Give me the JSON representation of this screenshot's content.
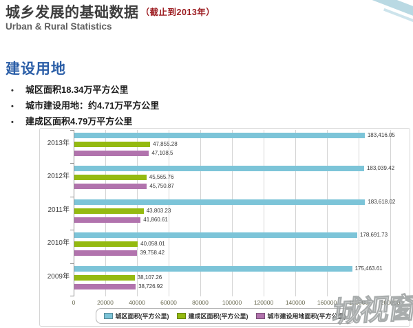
{
  "header": {
    "title": "城乡发展的基础数据",
    "title_suffix": "（截止到2013年）",
    "subtitle": "Urban & Rural Statistics"
  },
  "section": {
    "heading": "建设用地",
    "bullets": [
      "城区面积18.34万平方公里",
      "城市建设用地：约4.71万平方公里",
      "建成区面积4.79万平方公里"
    ],
    "bullet_char": "•"
  },
  "watermark": {
    "text": "城视窗"
  },
  "colors": {
    "heading_blue": "#2b5ea7",
    "title_red": "#9c1b20",
    "series_blue": "#7cc4d8",
    "series_green": "#94ba10",
    "series_purple": "#b173ad"
  },
  "chart_data": {
    "type": "bar",
    "orientation": "horizontal",
    "title": "",
    "xlabel": "",
    "ylabel": "",
    "categories": [
      "2013年",
      "2012年",
      "2011年",
      "2010年",
      "2009年"
    ],
    "series": [
      {
        "name": "城区面积(平方公里)",
        "color": "#7cc4d8",
        "values": [
          183416.05,
          183039.42,
          183618.02,
          178691.73,
          175463.61
        ],
        "labels": [
          "183,416.05",
          "183,039.42",
          "183,618.02",
          "178,691.73",
          "175,463.61"
        ]
      },
      {
        "name": "建成区面积(平方公里)",
        "color": "#94ba10",
        "values": [
          47855.28,
          45565.76,
          43803.23,
          40058.01,
          38107.26
        ],
        "labels": [
          "47,855.28",
          "45,565.76",
          "43,803.23",
          "40,058.01",
          "38,107.26"
        ]
      },
      {
        "name": "城市建设用地面积(平方公里)",
        "color": "#b173ad",
        "values": [
          47108.5,
          45750.87,
          41860.61,
          39758.42,
          38726.92
        ],
        "labels": [
          "47,108.5",
          "45,750.87",
          "41,860.61",
          "39,758.42",
          "38,726.92"
        ]
      }
    ],
    "xlim": [
      0,
      200000
    ],
    "x_ticks": [
      0,
      20000,
      40000,
      60000,
      80000,
      100000,
      120000,
      140000,
      160000,
      180000,
      200000
    ],
    "grid": true,
    "legend_position": "bottom"
  }
}
